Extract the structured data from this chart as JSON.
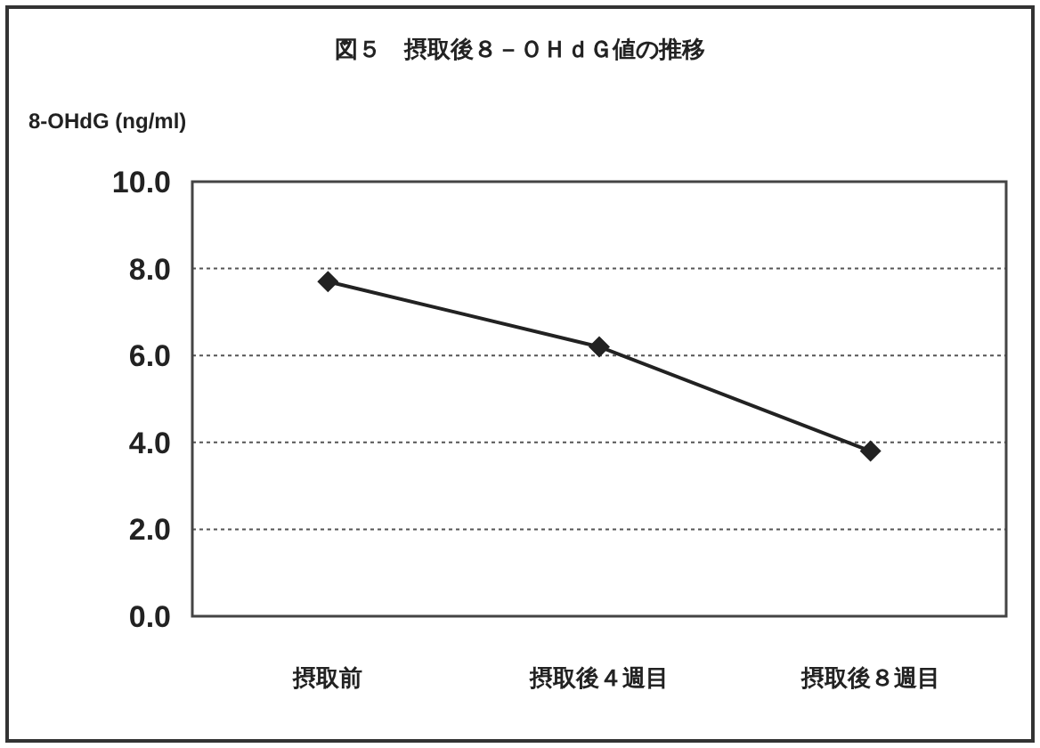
{
  "chart_data": {
    "type": "line",
    "title": "図５　摂取後８－ＯＨｄＧ値の推移",
    "ylabel": "8-OHdG (ng/ml)",
    "categories": [
      "摂取前",
      "摂取後４週目",
      "摂取後８週目"
    ],
    "series": [
      {
        "color": "#222222",
        "values": [
          7.7,
          6.2,
          3.8
        ]
      }
    ],
    "ylim": [
      0,
      10
    ],
    "yticks": [
      {
        "value": 0,
        "label": "0.0"
      },
      {
        "value": 2,
        "label": "2.0"
      },
      {
        "value": 4,
        "label": "4.0"
      },
      {
        "value": 6,
        "label": "6.0"
      },
      {
        "value": 8,
        "label": "8.0"
      },
      {
        "value": 10,
        "label": "10.0"
      }
    ],
    "grid": "y",
    "marker": "diamond",
    "line_style": "solid"
  }
}
